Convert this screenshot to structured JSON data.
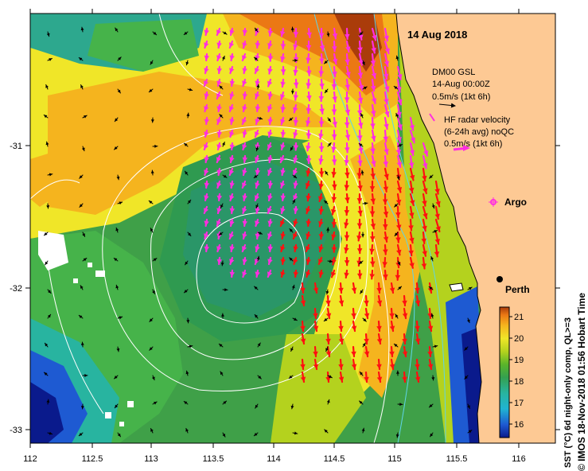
{
  "date_title": "14 Aug 2018",
  "legend": {
    "model_name": "DM00 GSL",
    "model_time": "14-Aug 00:00Z",
    "model_scale": "0.5m/s (1kt 6h)",
    "radar_line1": "HF radar velocity",
    "radar_line2": "(6-24h avg) noQC",
    "radar_scale": "0.5m/s (1kt 6h)",
    "argo_label": "Argo"
  },
  "city_label": "Perth",
  "x_ticks": [
    "112",
    "112.5",
    "113",
    "113.5",
    "114",
    "114.5",
    "115",
    "115.5",
    "116"
  ],
  "y_ticks": [
    "-31",
    "-32",
    "-33"
  ],
  "colorbar": {
    "ticks": [
      "21",
      "20",
      "19",
      "18",
      "17",
      "16"
    ],
    "caption": "SST (°C) 6d night-only comp, QL>=3",
    "colors": [
      "#0a1a8c",
      "#1e5ad2",
      "#20b4d2",
      "#28b4a0",
      "#34a050",
      "#5ab42a",
      "#b4d21e",
      "#f0e628",
      "#f5b41e",
      "#eb7814",
      "#aa3c0a"
    ]
  },
  "credit": "© IMOS 18-Nov-2018 01:56 Hobart Time",
  "colors": {
    "land": "#fdc994",
    "radar_arrow": "#ff2ee0",
    "current_arrow": "#ff1010",
    "contour": "#ffffff"
  }
}
